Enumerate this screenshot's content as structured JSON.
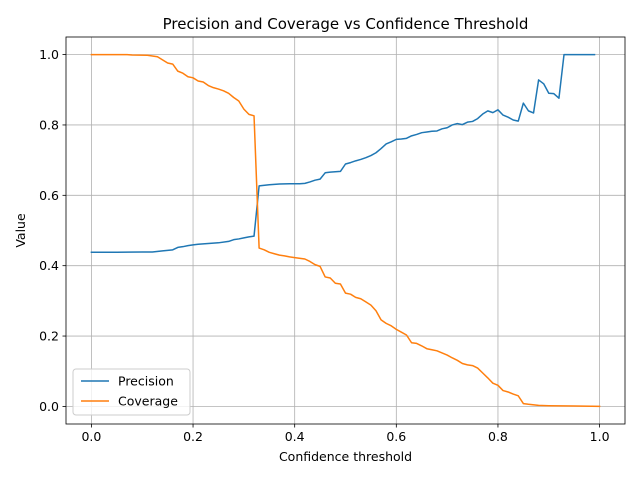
{
  "chart_data": {
    "type": "line",
    "title": "Precision and Coverage vs Confidence Threshold",
    "xlabel": "Confidence threshold",
    "ylabel": "Value",
    "xlim": [
      -0.05,
      1.05
    ],
    "ylim": [
      -0.05,
      1.05
    ],
    "xticks": [
      0.0,
      0.2,
      0.4,
      0.6,
      0.8,
      1.0
    ],
    "yticks": [
      0.0,
      0.2,
      0.4,
      0.6,
      0.8,
      1.0
    ],
    "xtick_labels": [
      "0.0",
      "0.2",
      "0.4",
      "0.6",
      "0.8",
      "1.0"
    ],
    "ytick_labels": [
      "0.0",
      "0.2",
      "0.4",
      "0.6",
      "0.8",
      "1.0"
    ],
    "grid": true,
    "legend_position": "lower-left",
    "series": [
      {
        "name": "Precision",
        "color": "#1f77b4",
        "points": [
          [
            0.0,
            0.438
          ],
          [
            0.05,
            0.438
          ],
          [
            0.1,
            0.439
          ],
          [
            0.12,
            0.439
          ],
          [
            0.14,
            0.442
          ],
          [
            0.16,
            0.445
          ],
          [
            0.17,
            0.452
          ],
          [
            0.18,
            0.454
          ],
          [
            0.19,
            0.457
          ],
          [
            0.2,
            0.459
          ],
          [
            0.21,
            0.461
          ],
          [
            0.23,
            0.463
          ],
          [
            0.25,
            0.465
          ],
          [
            0.27,
            0.469
          ],
          [
            0.28,
            0.474
          ],
          [
            0.29,
            0.476
          ],
          [
            0.3,
            0.479
          ],
          [
            0.31,
            0.482
          ],
          [
            0.32,
            0.484
          ],
          [
            0.33,
            0.627
          ],
          [
            0.35,
            0.63
          ],
          [
            0.37,
            0.632
          ],
          [
            0.39,
            0.633
          ],
          [
            0.41,
            0.633
          ],
          [
            0.42,
            0.634
          ],
          [
            0.43,
            0.638
          ],
          [
            0.44,
            0.643
          ],
          [
            0.45,
            0.646
          ],
          [
            0.46,
            0.664
          ],
          [
            0.47,
            0.666
          ],
          [
            0.49,
            0.668
          ],
          [
            0.5,
            0.689
          ],
          [
            0.51,
            0.693
          ],
          [
            0.52,
            0.698
          ],
          [
            0.53,
            0.702
          ],
          [
            0.54,
            0.707
          ],
          [
            0.55,
            0.713
          ],
          [
            0.56,
            0.721
          ],
          [
            0.57,
            0.733
          ],
          [
            0.58,
            0.746
          ],
          [
            0.59,
            0.752
          ],
          [
            0.6,
            0.759
          ],
          [
            0.61,
            0.76
          ],
          [
            0.62,
            0.762
          ],
          [
            0.63,
            0.769
          ],
          [
            0.64,
            0.773
          ],
          [
            0.65,
            0.778
          ],
          [
            0.66,
            0.78
          ],
          [
            0.67,
            0.782
          ],
          [
            0.68,
            0.783
          ],
          [
            0.69,
            0.789
          ],
          [
            0.7,
            0.792
          ],
          [
            0.71,
            0.8
          ],
          [
            0.72,
            0.804
          ],
          [
            0.73,
            0.801
          ],
          [
            0.74,
            0.808
          ],
          [
            0.75,
            0.81
          ],
          [
            0.76,
            0.818
          ],
          [
            0.77,
            0.831
          ],
          [
            0.78,
            0.84
          ],
          [
            0.79,
            0.835
          ],
          [
            0.8,
            0.843
          ],
          [
            0.81,
            0.828
          ],
          [
            0.82,
            0.822
          ],
          [
            0.83,
            0.814
          ],
          [
            0.84,
            0.811
          ],
          [
            0.85,
            0.862
          ],
          [
            0.86,
            0.84
          ],
          [
            0.87,
            0.834
          ],
          [
            0.88,
            0.928
          ],
          [
            0.89,
            0.917
          ],
          [
            0.9,
            0.89
          ],
          [
            0.91,
            0.889
          ],
          [
            0.92,
            0.876
          ],
          [
            0.93,
            1.0
          ],
          [
            0.96,
            1.0
          ],
          [
            0.99,
            1.0
          ]
        ]
      },
      {
        "name": "Coverage",
        "color": "#ff7f0e",
        "points": [
          [
            0.0,
            1.0
          ],
          [
            0.05,
            1.0
          ],
          [
            0.07,
            1.0
          ],
          [
            0.08,
            0.999
          ],
          [
            0.11,
            0.998
          ],
          [
            0.13,
            0.994
          ],
          [
            0.14,
            0.985
          ],
          [
            0.15,
            0.976
          ],
          [
            0.16,
            0.973
          ],
          [
            0.17,
            0.953
          ],
          [
            0.18,
            0.947
          ],
          [
            0.19,
            0.937
          ],
          [
            0.2,
            0.934
          ],
          [
            0.21,
            0.925
          ],
          [
            0.22,
            0.922
          ],
          [
            0.23,
            0.912
          ],
          [
            0.24,
            0.906
          ],
          [
            0.25,
            0.902
          ],
          [
            0.26,
            0.897
          ],
          [
            0.27,
            0.89
          ],
          [
            0.28,
            0.878
          ],
          [
            0.29,
            0.868
          ],
          [
            0.3,
            0.845
          ],
          [
            0.31,
            0.83
          ],
          [
            0.32,
            0.826
          ],
          [
            0.33,
            0.45
          ],
          [
            0.34,
            0.445
          ],
          [
            0.35,
            0.438
          ],
          [
            0.36,
            0.434
          ],
          [
            0.37,
            0.43
          ],
          [
            0.38,
            0.428
          ],
          [
            0.39,
            0.425
          ],
          [
            0.4,
            0.423
          ],
          [
            0.42,
            0.419
          ],
          [
            0.43,
            0.412
          ],
          [
            0.44,
            0.403
          ],
          [
            0.45,
            0.398
          ],
          [
            0.46,
            0.368
          ],
          [
            0.47,
            0.365
          ],
          [
            0.48,
            0.35
          ],
          [
            0.49,
            0.348
          ],
          [
            0.5,
            0.322
          ],
          [
            0.51,
            0.319
          ],
          [
            0.52,
            0.31
          ],
          [
            0.53,
            0.306
          ],
          [
            0.54,
            0.297
          ],
          [
            0.55,
            0.288
          ],
          [
            0.56,
            0.272
          ],
          [
            0.57,
            0.246
          ],
          [
            0.58,
            0.236
          ],
          [
            0.59,
            0.229
          ],
          [
            0.6,
            0.219
          ],
          [
            0.61,
            0.211
          ],
          [
            0.62,
            0.203
          ],
          [
            0.63,
            0.181
          ],
          [
            0.64,
            0.179
          ],
          [
            0.65,
            0.172
          ],
          [
            0.66,
            0.164
          ],
          [
            0.67,
            0.161
          ],
          [
            0.68,
            0.158
          ],
          [
            0.69,
            0.152
          ],
          [
            0.7,
            0.146
          ],
          [
            0.71,
            0.138
          ],
          [
            0.72,
            0.131
          ],
          [
            0.73,
            0.122
          ],
          [
            0.74,
            0.118
          ],
          [
            0.75,
            0.116
          ],
          [
            0.76,
            0.109
          ],
          [
            0.77,
            0.095
          ],
          [
            0.78,
            0.081
          ],
          [
            0.79,
            0.066
          ],
          [
            0.8,
            0.06
          ],
          [
            0.81,
            0.045
          ],
          [
            0.82,
            0.041
          ],
          [
            0.83,
            0.035
          ],
          [
            0.84,
            0.03
          ],
          [
            0.85,
            0.008
          ],
          [
            0.86,
            0.006
          ],
          [
            0.88,
            0.003
          ],
          [
            0.9,
            0.002
          ],
          [
            0.95,
            0.001
          ],
          [
            1.0,
            0.0
          ]
        ]
      }
    ]
  }
}
